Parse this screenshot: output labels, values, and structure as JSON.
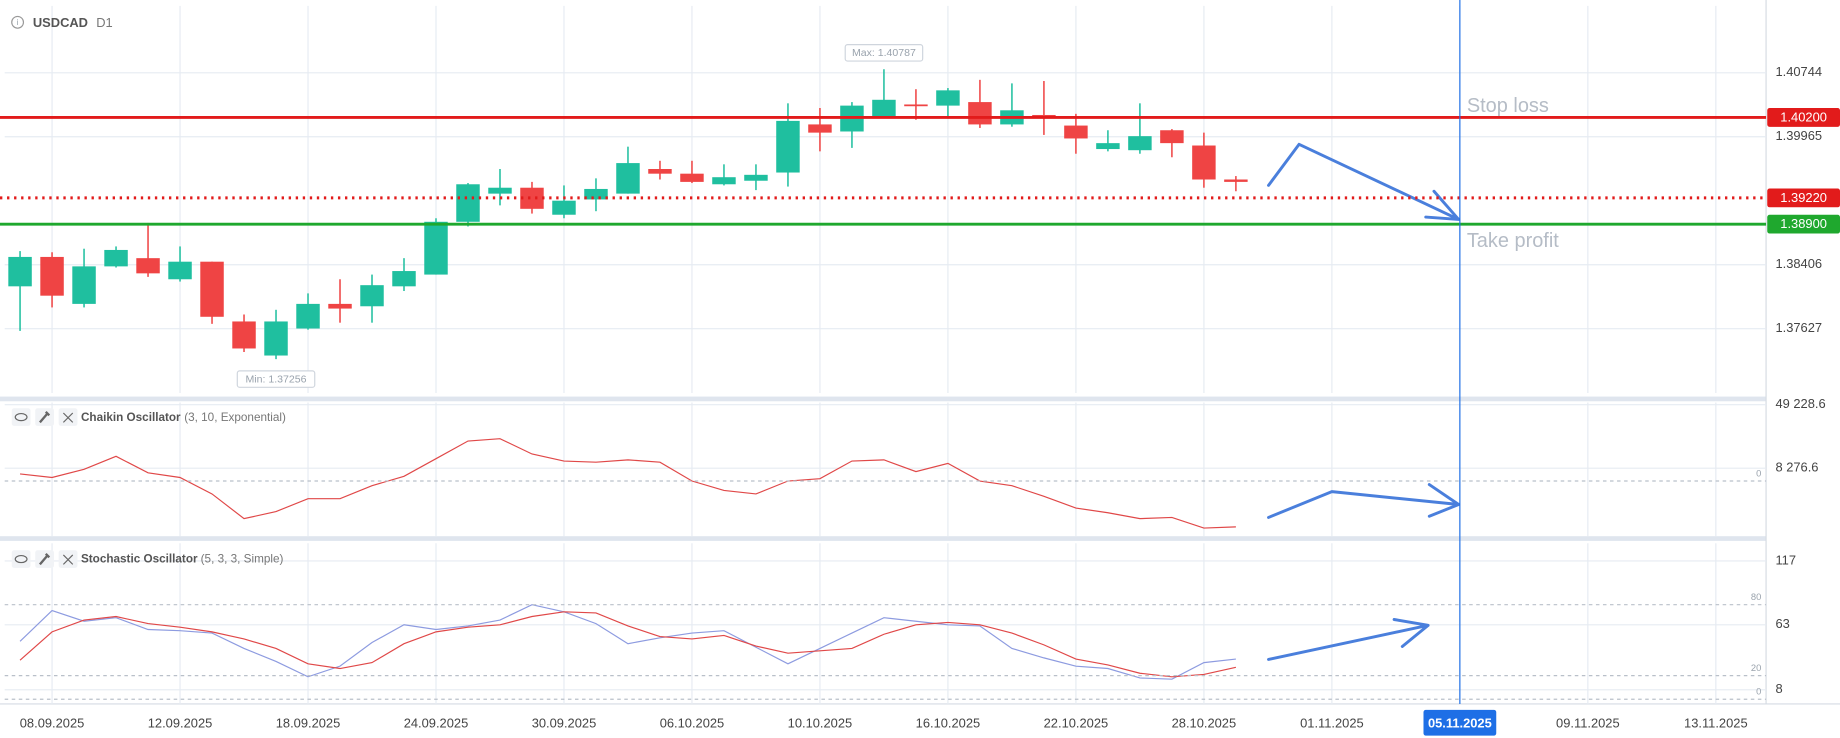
{
  "header": {
    "symbol": "USDCAD",
    "timeframe": "D1"
  },
  "chart_data": [
    {
      "type": "candlestick",
      "x": [
        0,
        1,
        2,
        3,
        4,
        5,
        6,
        7,
        8,
        9,
        10,
        11,
        12,
        13,
        14,
        15,
        16,
        17,
        18,
        19,
        20,
        21,
        22,
        23,
        24,
        25,
        26,
        27,
        28,
        29,
        30,
        31,
        32,
        33,
        34,
        35,
        36,
        37,
        38
      ],
      "open": [
        1.38143,
        1.38501,
        1.37929,
        1.38386,
        1.38486,
        1.38229,
        1.38443,
        1.37715,
        1.373,
        1.37629,
        1.37929,
        1.379,
        1.38143,
        1.38286,
        1.38929,
        1.39272,
        1.39344,
        1.39015,
        1.39201,
        1.39272,
        1.39572,
        1.39515,
        1.39386,
        1.39429,
        1.39529,
        1.40115,
        1.40029,
        1.40215,
        1.40358,
        1.40344,
        1.40387,
        1.40115,
        1.4023,
        1.40101,
        1.39815,
        1.39801,
        1.40044,
        1.39858,
        1.39444
      ],
      "high": [
        1.38572,
        1.38558,
        1.38601,
        1.38629,
        1.38915,
        1.38629,
        1.38443,
        1.378,
        1.37857,
        1.38057,
        1.38229,
        1.38286,
        1.38486,
        1.38972,
        1.39401,
        1.39572,
        1.39415,
        1.39372,
        1.39458,
        1.39844,
        1.39672,
        1.39672,
        1.39629,
        1.39629,
        1.40372,
        1.40315,
        1.40387,
        1.40787,
        1.40544,
        1.40558,
        1.40658,
        1.40615,
        1.40644,
        1.40244,
        1.40044,
        1.40372,
        1.40058,
        1.40015,
        1.39486
      ],
      "low": [
        1.376,
        1.37886,
        1.37886,
        1.38372,
        1.38258,
        1.38201,
        1.37686,
        1.37343,
        1.37256,
        1.37615,
        1.377,
        1.377,
        1.38086,
        1.38286,
        1.38872,
        1.39129,
        1.39029,
        1.38972,
        1.39058,
        1.39272,
        1.39444,
        1.39401,
        1.39372,
        1.39315,
        1.39358,
        1.39787,
        1.39829,
        1.40215,
        1.40172,
        1.40187,
        1.40072,
        1.40087,
        1.39987,
        1.39758,
        1.39787,
        1.39758,
        1.39715,
        1.39344,
        1.39301
      ],
      "close": [
        1.38501,
        1.38029,
        1.38386,
        1.38586,
        1.38301,
        1.38443,
        1.37772,
        1.37386,
        1.37715,
        1.37929,
        1.37872,
        1.38157,
        1.38329,
        1.38929,
        1.39386,
        1.39344,
        1.39087,
        1.39186,
        1.39329,
        1.39644,
        1.39515,
        1.39415,
        1.39472,
        1.39501,
        1.40158,
        1.40015,
        1.40344,
        1.40415,
        1.40344,
        1.4053,
        1.40115,
        1.40287,
        1.40215,
        1.39944,
        1.39887,
        1.39972,
        1.39887,
        1.39444,
        1.39415
      ],
      "up_color": "#1fbf9f",
      "down_color": "#ef4444",
      "xlim": [
        -0.48,
        54.57
      ],
      "xticks": [
        {
          "value": 1,
          "label": "08.09.2025"
        },
        {
          "value": 5,
          "label": "12.09.2025"
        },
        {
          "value": 9,
          "label": "18.09.2025"
        },
        {
          "value": 13,
          "label": "24.09.2025"
        },
        {
          "value": 17,
          "label": "30.09.2025"
        },
        {
          "value": 21,
          "label": "06.10.2025"
        },
        {
          "value": 25,
          "label": "10.10.2025"
        },
        {
          "value": 29,
          "label": "16.10.2025"
        },
        {
          "value": 33,
          "label": "22.10.2025"
        },
        {
          "value": 37,
          "label": "28.10.2025"
        },
        {
          "value": 41,
          "label": "01.11.2025"
        },
        {
          "value": 45,
          "label": "05.11.2025"
        },
        {
          "value": 49,
          "label": "09.11.2025"
        },
        {
          "value": 53,
          "label": "13.11.2025"
        }
      ],
      "crosshair": "05.11.2025",
      "crosshair_color": "#1e6fe6",
      "ylim": [
        1.36843,
        1.41559
      ],
      "yticks": [
        1.40744,
        1.39965,
        1.38406,
        1.37627
      ],
      "grid": true,
      "max_label": "Max: 1.40787",
      "min_label": "Min: 1.37256",
      "levels": [
        {
          "name": "Stop loss",
          "value": 1.402,
          "label": "1.40200",
          "color": "#e21b1b",
          "style": "solid"
        },
        {
          "value": 1.3922,
          "label": "1.39220",
          "color": "#e21b1b",
          "style": "dotted"
        },
        {
          "name": "Take profit",
          "value": 1.389,
          "label": "1.38900",
          "color": "#1fa82e",
          "style": "solid"
        }
      ]
    },
    {
      "type": "line",
      "title": "Chaikin Oscillator",
      "params": "(3, 10, Exponential)",
      "x": [
        0,
        1,
        2,
        3,
        4,
        5,
        6,
        7,
        8,
        9,
        10,
        11,
        12,
        13,
        14,
        15,
        16,
        17,
        18,
        19,
        20,
        21,
        22,
        23,
        24,
        25,
        26,
        27,
        28,
        29,
        30,
        31,
        32,
        33,
        34,
        35,
        36,
        37,
        38
      ],
      "values": [
        4550,
        2280,
        7580,
        15930,
        5310,
        2280,
        -8340,
        -24270,
        -19720,
        -11380,
        -11380,
        -3030,
        3030,
        14410,
        25790,
        27300,
        17440,
        12890,
        12130,
        13650,
        12130,
        0,
        -6070,
        -8340,
        0,
        1520,
        12890,
        13650,
        6070,
        11380,
        0,
        -3030,
        -9860,
        -17440,
        -20480,
        -24270,
        -23510,
        -30340,
        -29580
      ],
      "color": "#e04848",
      "ylim": [
        -35600,
        50700
      ],
      "yticks": [
        {
          "value": 49228.6,
          "label": "49 228.6"
        },
        {
          "value": 8276.6,
          "label": "8 276.6"
        }
      ],
      "levels": [
        0
      ]
    },
    {
      "type": "line",
      "title": "Stochastic Oscillator",
      "params": "(5, 3, 3, Simple)",
      "x": [
        0,
        1,
        2,
        3,
        4,
        5,
        6,
        7,
        8,
        9,
        10,
        11,
        12,
        13,
        14,
        15,
        16,
        17,
        18,
        19,
        20,
        21,
        22,
        23,
        24,
        25,
        26,
        27,
        28,
        29,
        30,
        31,
        32,
        33,
        34,
        35,
        36,
        37,
        38
      ],
      "series": [
        {
          "color": "#8d9be0",
          "values": [
            49,
            75,
            66,
            69,
            59,
            58,
            56,
            43,
            32,
            19,
            28,
            48,
            63,
            59,
            62,
            67,
            80,
            74,
            64,
            47,
            52,
            56,
            58,
            44,
            30,
            43,
            56,
            69,
            66,
            63,
            62,
            43,
            35,
            28,
            26,
            18,
            17,
            31,
            34
          ]
        },
        {
          "color": "#e04848",
          "values": [
            33,
            57,
            67,
            70,
            64,
            61,
            57,
            51,
            43,
            30,
            26,
            31,
            47,
            57,
            61,
            63,
            70,
            74,
            73,
            62,
            53,
            51,
            54,
            45,
            39,
            41,
            43,
            55,
            63,
            65,
            63,
            56,
            46,
            34,
            29,
            22,
            19,
            21,
            27
          ]
        }
      ],
      "ylim": [
        -4,
        132
      ],
      "yticks": [
        117,
        63,
        8
      ],
      "levels": [
        80,
        20,
        0
      ]
    }
  ]
}
